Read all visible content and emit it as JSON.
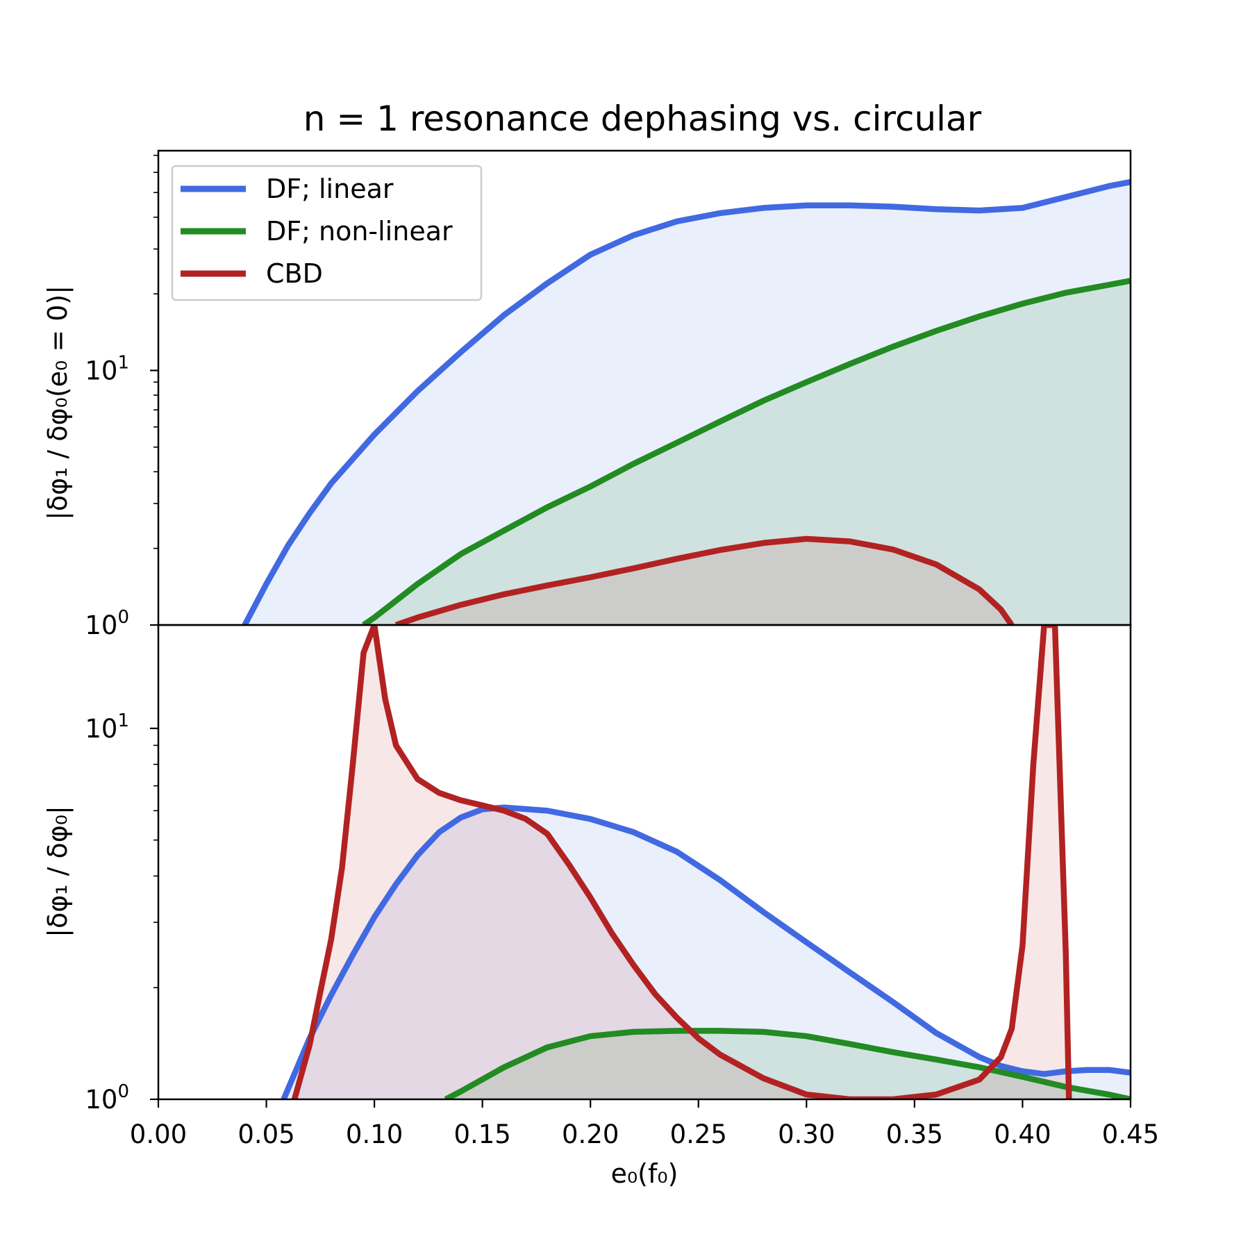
{
  "chart_data": {
    "type": "line",
    "title": "n = 1 resonance dephasing vs. circular",
    "xlabel": "e₀(f₀)",
    "xlim": [
      0.0,
      0.45
    ],
    "xticks": [
      "0.00",
      "0.05",
      "0.10",
      "0.15",
      "0.20",
      "0.25",
      "0.30",
      "0.35",
      "0.40",
      "0.45"
    ],
    "yscale": "log",
    "legend": {
      "position": "top-left",
      "entries": [
        {
          "label": "DF; linear",
          "color": "#4169e1"
        },
        {
          "label": "DF; non-linear",
          "color": "#228b22"
        },
        {
          "label": "CBD",
          "color": "#b22222"
        }
      ]
    },
    "panels": [
      {
        "name": "top",
        "ylabel": "|δφ₁ / δφ₀(e₀ = 0)|",
        "ylim": [
          1.0,
          73.0
        ],
        "yticks": [
          {
            "value": 1,
            "base": "10",
            "exp": "0"
          },
          {
            "value": 10,
            "base": "10",
            "exp": "1"
          }
        ],
        "series": [
          {
            "name": "DF; linear",
            "color": "#4169e1",
            "x": [
              0.04,
              0.05,
              0.06,
              0.07,
              0.08,
              0.1,
              0.12,
              0.14,
              0.16,
              0.18,
              0.2,
              0.22,
              0.24,
              0.26,
              0.28,
              0.3,
              0.32,
              0.34,
              0.36,
              0.38,
              0.4,
              0.42,
              0.44,
              0.45
            ],
            "y": [
              1.0,
              1.45,
              2.05,
              2.75,
              3.6,
              5.6,
              8.3,
              11.8,
              16.5,
              22.0,
              28.5,
              34.0,
              38.5,
              41.5,
              43.5,
              44.5,
              44.5,
              44.0,
              43.0,
              42.5,
              43.5,
              48.0,
              53.0,
              55.0
            ]
          },
          {
            "name": "DF; non-linear",
            "color": "#228b22",
            "x": [
              0.095,
              0.1,
              0.12,
              0.14,
              0.16,
              0.18,
              0.2,
              0.22,
              0.24,
              0.26,
              0.28,
              0.3,
              0.32,
              0.34,
              0.36,
              0.38,
              0.4,
              0.42,
              0.44,
              0.45
            ],
            "y": [
              1.0,
              1.07,
              1.45,
              1.9,
              2.35,
              2.9,
              3.5,
              4.3,
              5.2,
              6.3,
              7.6,
              9.0,
              10.6,
              12.4,
              14.3,
              16.3,
              18.3,
              20.2,
              21.7,
              22.5
            ]
          },
          {
            "name": "CBD",
            "color": "#b22222",
            "x": [
              0.11,
              0.12,
              0.14,
              0.16,
              0.18,
              0.2,
              0.22,
              0.24,
              0.26,
              0.28,
              0.3,
              0.32,
              0.34,
              0.36,
              0.38,
              0.39,
              0.395
            ],
            "y": [
              1.0,
              1.07,
              1.2,
              1.32,
              1.43,
              1.54,
              1.67,
              1.82,
              1.97,
              2.1,
              2.18,
              2.13,
              1.98,
              1.73,
              1.38,
              1.15,
              1.0
            ]
          }
        ]
      },
      {
        "name": "bottom",
        "ylabel": "|δφ₁ / δφ₀|",
        "ylim": [
          1.0,
          19.0
        ],
        "yticks": [
          {
            "value": 1,
            "base": "10",
            "exp": "0"
          },
          {
            "value": 10,
            "base": "10",
            "exp": "1"
          }
        ],
        "series": [
          {
            "name": "DF; linear",
            "color": "#4169e1",
            "x": [
              0.058,
              0.07,
              0.08,
              0.09,
              0.1,
              0.11,
              0.12,
              0.13,
              0.14,
              0.15,
              0.16,
              0.18,
              0.2,
              0.22,
              0.24,
              0.26,
              0.28,
              0.3,
              0.32,
              0.34,
              0.36,
              0.38,
              0.39,
              0.4,
              0.41,
              0.42,
              0.43,
              0.44,
              0.45
            ],
            "y": [
              1.0,
              1.46,
              1.91,
              2.45,
              3.1,
              3.8,
              4.55,
              5.25,
              5.75,
              6.05,
              6.12,
              6.0,
              5.7,
              5.25,
              4.65,
              3.9,
              3.2,
              2.65,
              2.2,
              1.83,
              1.51,
              1.3,
              1.23,
              1.19,
              1.17,
              1.19,
              1.2,
              1.2,
              1.18
            ]
          },
          {
            "name": "DF; non-linear",
            "color": "#228b22",
            "x": [
              0.133,
              0.14,
              0.16,
              0.18,
              0.2,
              0.22,
              0.24,
              0.26,
              0.28,
              0.3,
              0.32,
              0.34,
              0.36,
              0.38,
              0.4,
              0.42,
              0.44,
              0.45
            ],
            "y": [
              1.0,
              1.05,
              1.22,
              1.38,
              1.48,
              1.52,
              1.53,
              1.53,
              1.52,
              1.48,
              1.41,
              1.34,
              1.28,
              1.22,
              1.15,
              1.08,
              1.03,
              1.0
            ]
          },
          {
            "name": "CBD",
            "color": "#b22222",
            "x": [
              0.063,
              0.07,
              0.075,
              0.08,
              0.085,
              0.09,
              0.095,
              0.1,
              0.105,
              0.11,
              0.12,
              0.13,
              0.14,
              0.15,
              0.16,
              0.17,
              0.18,
              0.19,
              0.2,
              0.21,
              0.22,
              0.23,
              0.24,
              0.25,
              0.26,
              0.28,
              0.3,
              0.32,
              0.34,
              0.36,
              0.38,
              0.39,
              0.395,
              0.4,
              0.405,
              0.41,
              0.415,
              0.42,
              0.4215
            ],
            "y": [
              1.0,
              1.4,
              1.95,
              2.7,
              4.2,
              8.0,
              16.0,
              19.0,
              12.0,
              9.0,
              7.3,
              6.7,
              6.4,
              6.2,
              6.0,
              5.7,
              5.2,
              4.3,
              3.5,
              2.8,
              2.3,
              1.92,
              1.66,
              1.46,
              1.32,
              1.14,
              1.03,
              1.0,
              1.0,
              1.03,
              1.13,
              1.3,
              1.55,
              2.6,
              8.0,
              19.0,
              19.0,
              2.5,
              1.0
            ]
          }
        ]
      }
    ]
  }
}
